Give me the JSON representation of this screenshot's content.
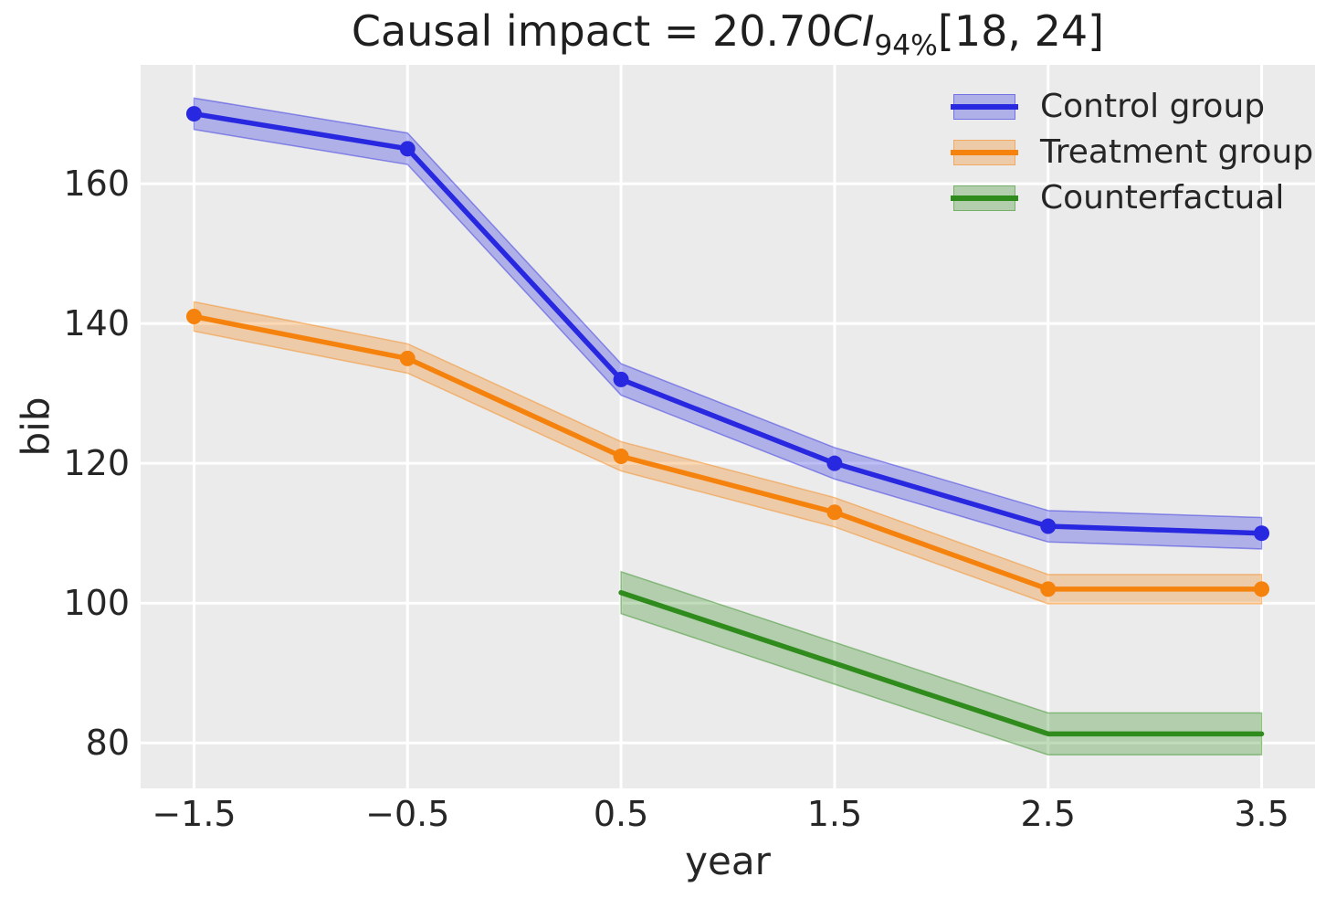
{
  "title": {
    "prefix": "Causal impact = 20.70",
    "ci_italic": "CI",
    "ci_subscript": "94%",
    "suffix": "[18, 24]"
  },
  "chart_data": {
    "type": "line",
    "title_text": "Causal impact = 20.70 CI94% [18, 24]",
    "xlabel": "year",
    "ylabel": "bib",
    "xlim": [
      -1.75,
      3.75
    ],
    "ylim": [
      73.5,
      177
    ],
    "xticks": [
      -1.5,
      -0.5,
      0.5,
      1.5,
      2.5,
      3.5
    ],
    "xtick_labels": [
      "−1.5",
      "−0.5",
      "0.5",
      "1.5",
      "2.5",
      "3.5"
    ],
    "yticks": [
      80,
      100,
      120,
      140,
      160
    ],
    "ytick_labels": [
      "80",
      "100",
      "120",
      "140",
      "160"
    ],
    "grid": true,
    "axes_facecolor": "#ebebeb",
    "grid_color": "#ffffff",
    "text_color": "#262626",
    "legend_position": "upper right",
    "series": [
      {
        "name": "Control group",
        "color": "#2828e0",
        "marker": "circle",
        "x": [
          -1.5,
          -0.5,
          0.5,
          1.5,
          2.5,
          3.5
        ],
        "y": [
          170,
          165,
          132,
          120,
          111,
          110
        ],
        "band_halfwidth": 2.25
      },
      {
        "name": "Treatment group",
        "color": "#f5820d",
        "marker": "circle",
        "x": [
          -1.5,
          -0.5,
          0.5,
          1.5,
          2.5,
          3.5
        ],
        "y": [
          141,
          135,
          121,
          113,
          102,
          102
        ],
        "band_halfwidth": 2.1
      },
      {
        "name": "Counterfactual",
        "color": "#2e8b1c",
        "marker": "none",
        "x": [
          0.5,
          1.5,
          2.5,
          3.5
        ],
        "y": [
          101.5,
          91.4,
          81.3,
          81.3
        ],
        "band_halfwidth": 3.0
      }
    ]
  },
  "legend": {
    "items": [
      {
        "label": "Control group",
        "color": "#2828e0"
      },
      {
        "label": "Treatment group",
        "color": "#f5820d"
      },
      {
        "label": "Counterfactual",
        "color": "#2e8b1c"
      }
    ]
  }
}
